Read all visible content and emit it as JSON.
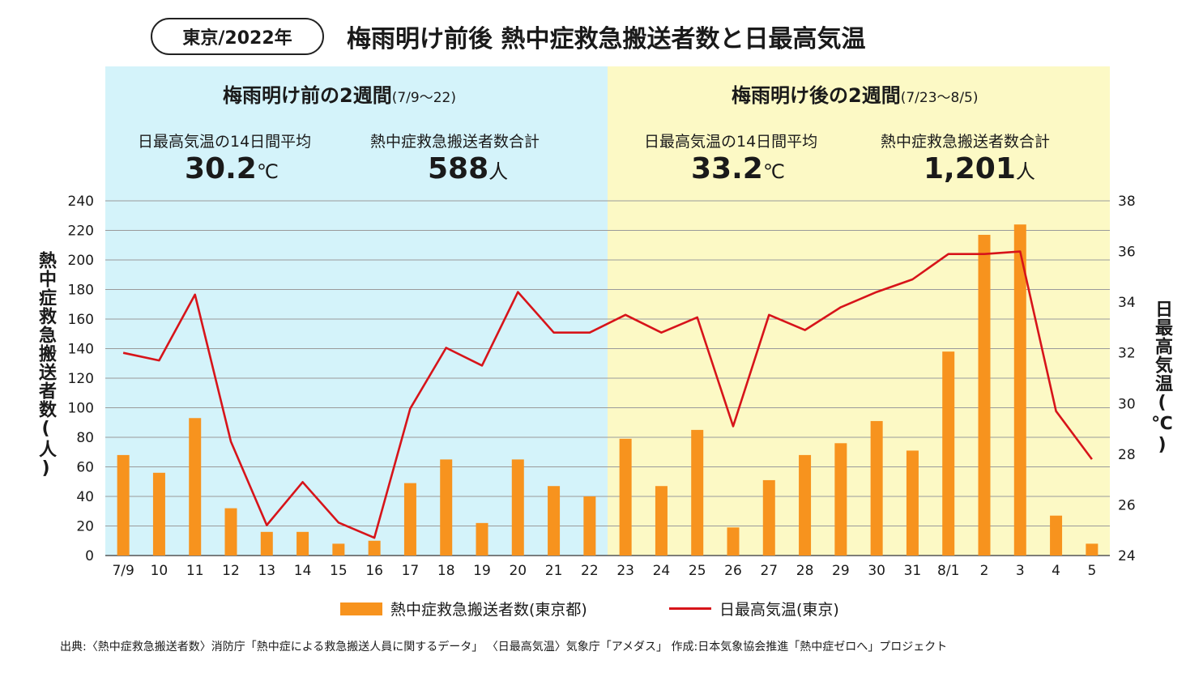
{
  "header": {
    "badge": "東京/2022年",
    "title": "梅雨明け前後 熱中症救急搬送者数と日最高気温"
  },
  "panels": {
    "before": {
      "title": "梅雨明け前の2週間",
      "range": "(7/9〜22)",
      "avg_label": "日最高気温の14日間平均",
      "avg_value": "30.2",
      "avg_unit": "℃",
      "total_label": "熱中症救急搬送者数合計",
      "total_value": "588",
      "total_unit": "人",
      "bg_color": "#d4f3fa"
    },
    "after": {
      "title": "梅雨明け後の2週間",
      "range": "(7/23〜8/5)",
      "avg_label": "日最高気温の14日間平均",
      "avg_value": "33.2",
      "avg_unit": "℃",
      "total_label": "熱中症救急搬送者数合計",
      "total_value": "1,201",
      "total_unit": "人",
      "bg_color": "#fcf9c5"
    }
  },
  "axes": {
    "left_label": "熱中症救急搬送者数(人)",
    "right_label": "日最高気温(℃)"
  },
  "legend": {
    "bar_label": "熱中症救急搬送者数(東京都)",
    "line_label": "日最高気温(東京)"
  },
  "source": "出典:〈熱中症救急搬送者数〉消防庁「熱中症による救急搬送人員に関するデータ」 〈日最高気温〉気象庁「アメダス」 作成:日本気象協会推進「熱中症ゼロへ」プロジェクト",
  "colors": {
    "bar": "#f7931e",
    "line": "#d7141a",
    "grid": "#9a9a9a"
  },
  "chart_data": {
    "type": "bar",
    "title": "梅雨明け前後 熱中症救急搬送者数と日最高気温",
    "categories": [
      "7/9",
      "10",
      "11",
      "12",
      "13",
      "14",
      "15",
      "16",
      "17",
      "18",
      "19",
      "20",
      "21",
      "22",
      "23",
      "24",
      "25",
      "26",
      "27",
      "28",
      "29",
      "30",
      "31",
      "8/1",
      "2",
      "3",
      "4",
      "5"
    ],
    "series": [
      {
        "name": "熱中症救急搬送者数(東京都)",
        "type": "bar",
        "axis": "left",
        "values": [
          68,
          56,
          93,
          32,
          16,
          16,
          8,
          10,
          49,
          65,
          22,
          65,
          47,
          40,
          79,
          47,
          85,
          19,
          51,
          68,
          76,
          91,
          71,
          138,
          217,
          224,
          27,
          8
        ]
      },
      {
        "name": "日最高気温(東京)",
        "type": "line",
        "axis": "right",
        "values": [
          32.0,
          31.7,
          34.3,
          28.5,
          25.2,
          26.9,
          25.3,
          24.7,
          29.8,
          32.2,
          31.5,
          34.4,
          32.8,
          32.8,
          33.5,
          32.8,
          33.4,
          29.1,
          33.5,
          32.9,
          33.8,
          34.4,
          34.9,
          35.9,
          35.9,
          36.0,
          29.7,
          27.8
        ]
      }
    ],
    "ylim_left": [
      0,
      240
    ],
    "ylim_right": [
      24,
      38
    ],
    "yticks_left": [
      0,
      20,
      40,
      60,
      80,
      100,
      120,
      140,
      160,
      180,
      200,
      220,
      240
    ],
    "yticks_right": [
      24,
      26,
      28,
      30,
      32,
      34,
      36,
      38
    ],
    "ylabel": "熱中症救急搬送者数(人)",
    "ylabel_right": "日最高気温(℃)",
    "xlabel": "",
    "grid": true,
    "legend": "bottom"
  }
}
